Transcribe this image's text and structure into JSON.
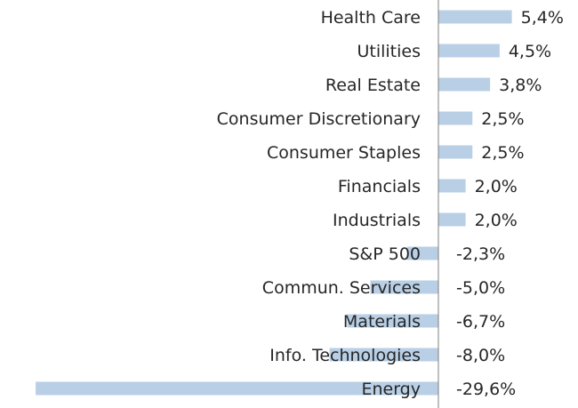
{
  "chart_data": {
    "type": "bar",
    "orientation": "horizontal",
    "categories": [
      "Health Care",
      "Utilities",
      "Real Estate",
      "Consumer Discretionary",
      "Consumer Staples",
      "Financials",
      "Industrials",
      "S&P 500",
      "Commun. Services",
      "Materials",
      "Info. Technologies",
      "Energy"
    ],
    "values": [
      5.4,
      4.5,
      3.8,
      2.5,
      2.5,
      2.0,
      2.0,
      -2.3,
      -5.0,
      -6.7,
      -8.0,
      -29.6
    ],
    "data_labels": [
      "5,4%",
      "4,5%",
      "3,8%",
      "2,5%",
      "2,5%",
      "2,0%",
      "2,0%",
      "-2,3%",
      "-5,0%",
      "-6,7%",
      "-8,0%",
      "-29,6%"
    ],
    "xlim": [
      -30.5,
      10
    ],
    "grid": false,
    "legend": "none",
    "colors": {
      "bar": "#b8cfe6",
      "text": "#262626",
      "axis": "#7f7f7f"
    }
  }
}
